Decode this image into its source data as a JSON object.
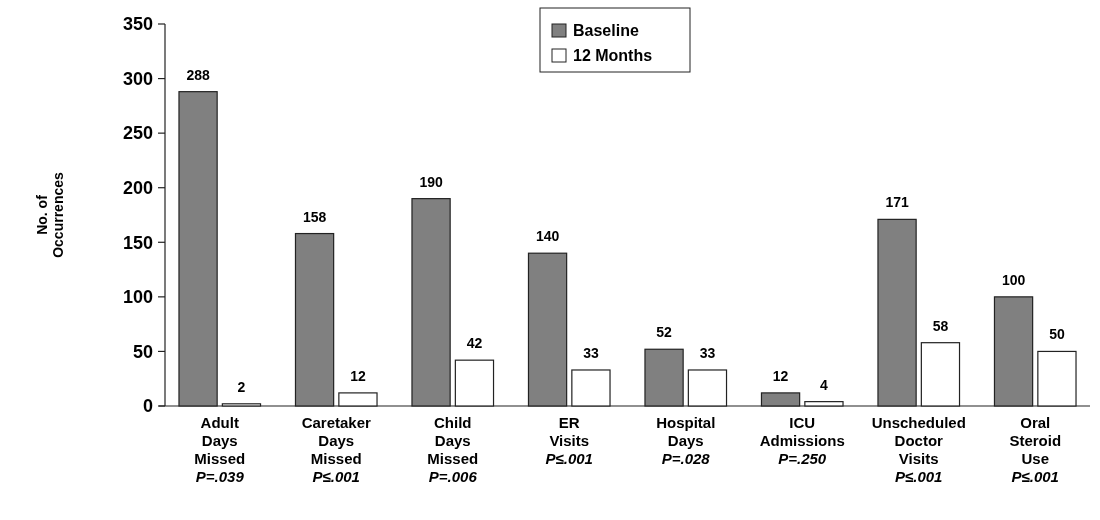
{
  "chart_data": {
    "type": "bar",
    "ylabel": "No. of\nOccurrences",
    "categories": [
      "Adult\nDays\nMissed",
      "Caretaker\nDays\nMissed",
      "Child\nDays\nMissed",
      "ER\nVisits",
      "Hospital\nDays",
      "ICU\nAdmissions",
      "Unscheduled\nDoctor\nVisits",
      "Oral\nSteroid\nUse"
    ],
    "series": [
      {
        "name": "Baseline",
        "color": "#808080",
        "values": [
          288,
          158,
          190,
          140,
          52,
          12,
          171,
          100
        ]
      },
      {
        "name": "12 Months",
        "color": "#ffffff",
        "values": [
          2,
          12,
          42,
          33,
          33,
          4,
          58,
          50
        ]
      }
    ],
    "ylim": [
      0,
      350
    ],
    "yticks": [
      0,
      50,
      100,
      150,
      200,
      250,
      300,
      350
    ],
    "data_labels": true,
    "legend": "top",
    "grid": false,
    "annotations": [
      "P=.039",
      "P≤.001",
      "P=.006",
      "P≤.001",
      "P=.028",
      "P=.250",
      "P≤.001",
      "P≤.001"
    ]
  }
}
